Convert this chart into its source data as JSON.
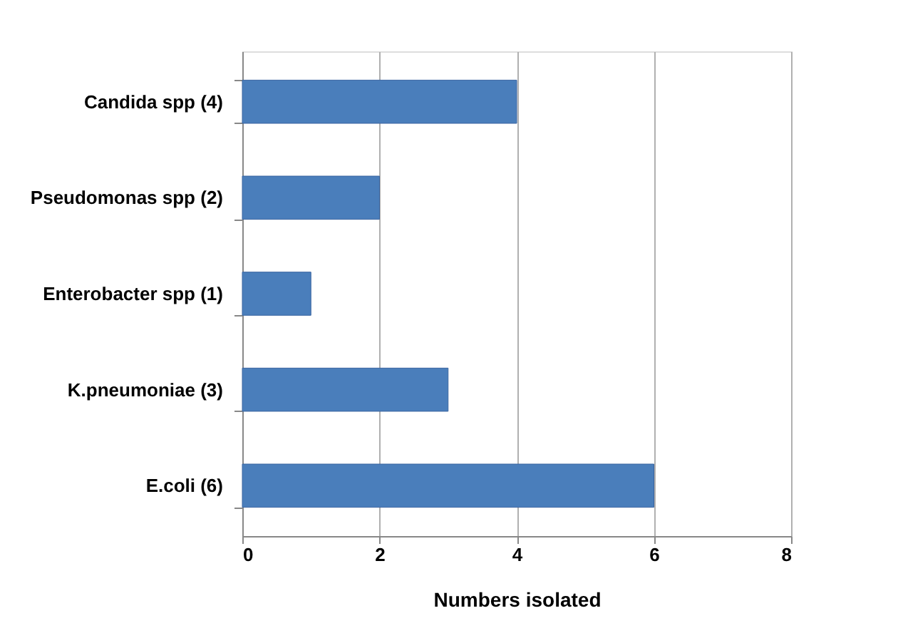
{
  "chart_data": {
    "type": "bar",
    "orientation": "horizontal",
    "xlabel": "Numbers isolated",
    "categories": [
      "Candida spp (4)",
      "Pseudomonas spp (2)",
      "Enterobacter spp (1)",
      "K.pneumoniae (3)",
      "E.coli (6)"
    ],
    "values": [
      4,
      2,
      1,
      3,
      6
    ],
    "color": "#4a7ebb",
    "xlim": [
      0,
      8
    ],
    "xticks": [
      0,
      2,
      4,
      6,
      8
    ],
    "grid": "x"
  }
}
